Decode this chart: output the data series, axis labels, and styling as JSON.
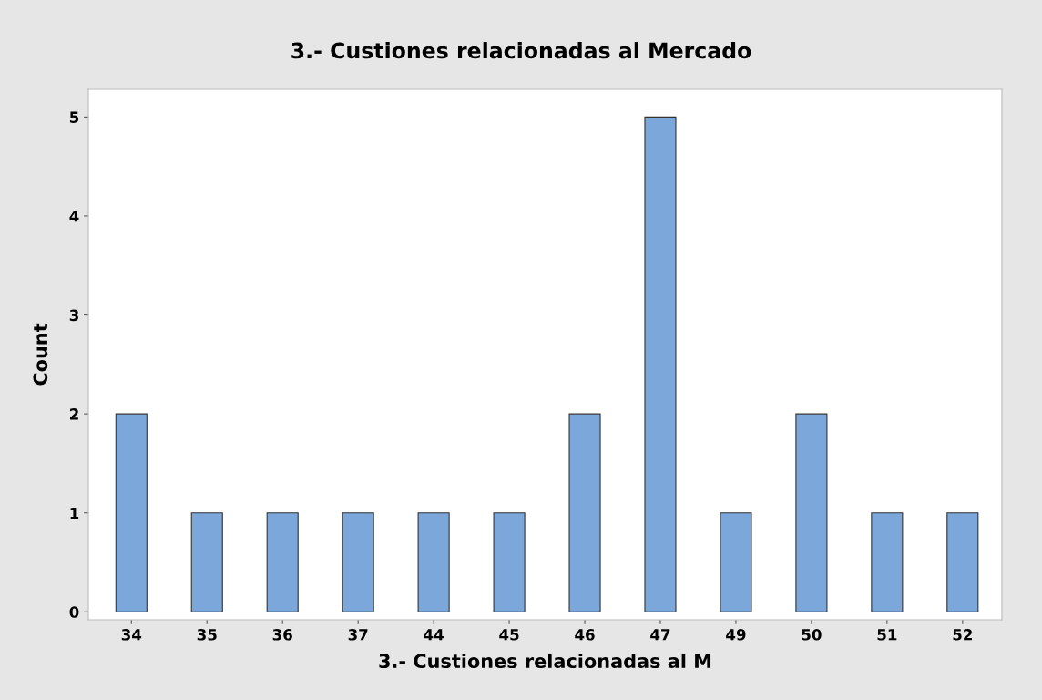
{
  "chart_data": {
    "type": "bar",
    "title": "3.- Custiones relacionadas al Mercado",
    "xlabel": "3.- Custiones relacionadas al M",
    "ylabel": "Count",
    "categories": [
      "34",
      "35",
      "36",
      "37",
      "44",
      "45",
      "46",
      "47",
      "49",
      "50",
      "51",
      "52"
    ],
    "values": [
      2,
      1,
      1,
      1,
      1,
      1,
      2,
      5,
      1,
      2,
      1,
      1
    ],
    "color": "#7ba7db",
    "ylim": [
      -0.08,
      5.28
    ],
    "yticks": [
      0,
      1,
      2,
      3,
      4,
      5
    ],
    "grid": false,
    "legend": false
  }
}
